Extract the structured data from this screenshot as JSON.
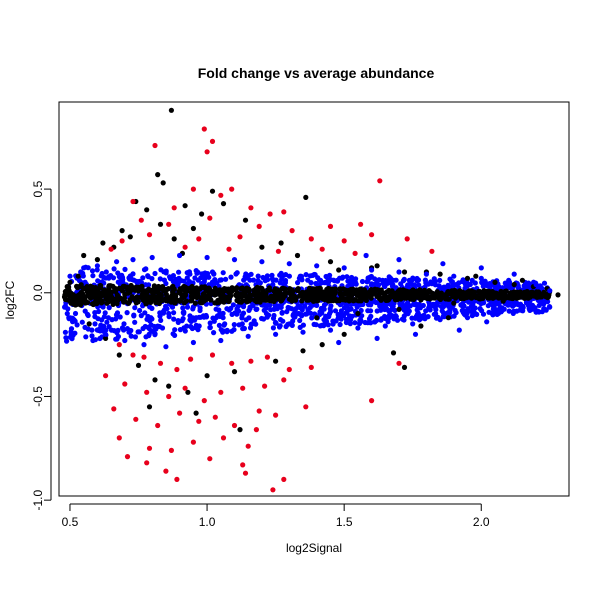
{
  "chart_data": {
    "type": "scatter",
    "title": "Fold change vs average abundance",
    "xlabel": "log2Signal",
    "ylabel": "log2FC",
    "xlim": [
      0.46,
      2.32
    ],
    "ylim": [
      -0.98,
      0.92
    ],
    "x_ticks": [
      0.5,
      1.0,
      1.5,
      2.0
    ],
    "x_tick_labels": [
      "0.5",
      "1.0",
      "1.5",
      "2.0"
    ],
    "y_ticks": [
      -1.0,
      -0.5,
      0.0,
      0.5
    ],
    "y_tick_labels": [
      "-1.0",
      "-0.5",
      "0.0",
      "0.5"
    ],
    "grid": false,
    "legend": "none",
    "colors": {
      "black": "#000000",
      "blue": "#0000ff",
      "red": "#e8001c"
    },
    "series": [
      {
        "color": "#000000",
        "points": [
          [
            0.87,
            0.88
          ],
          [
            0.82,
            0.57
          ],
          [
            0.84,
            0.53
          ],
          [
            1.02,
            0.49
          ],
          [
            1.36,
            0.46
          ],
          [
            0.74,
            0.44
          ],
          [
            0.78,
            0.4
          ],
          [
            0.92,
            0.42
          ],
          [
            1.06,
            0.43
          ],
          [
            0.98,
            0.38
          ],
          [
            0.69,
            0.3
          ],
          [
            0.72,
            0.27
          ],
          [
            0.83,
            0.33
          ],
          [
            0.95,
            0.31
          ],
          [
            1.14,
            0.35
          ],
          [
            0.62,
            0.24
          ],
          [
            0.66,
            0.22
          ],
          [
            0.88,
            0.26
          ],
          [
            1.2,
            0.22
          ],
          [
            1.27,
            0.24
          ],
          [
            0.55,
            0.18
          ],
          [
            0.6,
            0.16
          ],
          [
            0.91,
            0.19
          ],
          [
            1.33,
            0.18
          ],
          [
            1.45,
            0.15
          ],
          [
            1.6,
            0.12
          ],
          [
            1.72,
            0.1
          ],
          [
            1.85,
            0.09
          ],
          [
            1.95,
            0.07
          ],
          [
            2.05,
            0.05
          ],
          [
            2.12,
            0.04
          ],
          [
            2.19,
            0.03
          ],
          [
            2.24,
            0.02
          ],
          [
            2.28,
            -0.01
          ],
          [
            2.22,
            -0.02
          ],
          [
            2.15,
            0.06
          ],
          [
            2.08,
            -0.04
          ],
          [
            1.98,
            0.08
          ],
          [
            1.9,
            -0.05
          ],
          [
            1.8,
            0.1
          ],
          [
            1.7,
            -0.08
          ],
          [
            1.62,
            0.13
          ],
          [
            1.55,
            -0.1
          ],
          [
            1.48,
            0.11
          ],
          [
            1.4,
            -0.12
          ],
          [
            0.49,
            0.03
          ],
          [
            0.48,
            -0.02
          ],
          [
            0.5,
            0.05
          ],
          [
            0.51,
            -0.05
          ],
          [
            0.53,
            0.08
          ],
          [
            0.57,
            -0.15
          ],
          [
            0.63,
            -0.22
          ],
          [
            0.68,
            -0.3
          ],
          [
            0.75,
            -0.35
          ],
          [
            0.81,
            -0.42
          ],
          [
            0.86,
            -0.45
          ],
          [
            0.93,
            -0.48
          ],
          [
            1.0,
            -0.4
          ],
          [
            1.1,
            -0.38
          ],
          [
            1.25,
            -0.33
          ],
          [
            1.35,
            -0.28
          ],
          [
            1.5,
            -0.2
          ],
          [
            1.68,
            -0.29
          ],
          [
            1.72,
            -0.36
          ],
          [
            1.12,
            -0.66
          ],
          [
            0.96,
            -0.58
          ],
          [
            0.79,
            -0.55
          ],
          [
            1.42,
            -0.25
          ],
          [
            1.78,
            -0.16
          ],
          [
            1.88,
            -0.12
          ]
        ]
      },
      {
        "color": "#0000ff",
        "points": [
          [
            0.5,
            0.08
          ],
          [
            0.52,
            -0.1
          ],
          [
            0.55,
            0.12
          ],
          [
            0.58,
            -0.18
          ],
          [
            0.6,
            0.13
          ],
          [
            0.63,
            -0.2
          ],
          [
            0.67,
            0.15
          ],
          [
            0.7,
            -0.23
          ],
          [
            0.73,
            0.16
          ],
          [
            0.77,
            -0.25
          ],
          [
            0.8,
            0.17
          ],
          [
            0.85,
            -0.26
          ],
          [
            0.9,
            0.18
          ],
          [
            0.95,
            -0.24
          ],
          [
            1.0,
            0.17
          ],
          [
            1.05,
            -0.23
          ],
          [
            1.1,
            0.16
          ],
          [
            1.15,
            -0.21
          ],
          [
            1.2,
            0.15
          ],
          [
            1.25,
            -0.2
          ],
          [
            1.3,
            0.14
          ],
          [
            1.35,
            -0.19
          ],
          [
            1.4,
            0.13
          ],
          [
            1.45,
            -0.18
          ],
          [
            1.5,
            0.12
          ],
          [
            1.55,
            -0.17
          ],
          [
            1.6,
            0.11
          ],
          [
            1.65,
            -0.16
          ],
          [
            1.7,
            0.1
          ],
          [
            1.75,
            -0.15
          ],
          [
            1.8,
            0.09
          ],
          [
            1.85,
            -0.13
          ],
          [
            1.9,
            0.08
          ],
          [
            1.95,
            -0.12
          ],
          [
            2.0,
            0.07
          ],
          [
            2.05,
            -0.1
          ],
          [
            2.1,
            0.06
          ],
          [
            2.15,
            -0.07
          ],
          [
            2.2,
            0.04
          ],
          [
            2.25,
            0.01
          ],
          [
            1.48,
            -0.24
          ],
          [
            1.62,
            -0.22
          ],
          [
            1.76,
            -0.2
          ],
          [
            1.92,
            -0.18
          ],
          [
            2.02,
            -0.14
          ],
          [
            1.58,
            0.18
          ],
          [
            1.7,
            0.16
          ],
          [
            1.86,
            0.14
          ],
          [
            2.0,
            0.12
          ],
          [
            2.12,
            0.09
          ],
          [
            0.64,
            -0.12
          ],
          [
            0.72,
            0.08
          ],
          [
            0.86,
            -0.1
          ],
          [
            1.02,
            0.1
          ],
          [
            1.18,
            -0.08
          ],
          [
            1.34,
            0.08
          ],
          [
            1.52,
            -0.08
          ],
          [
            1.68,
            0.06
          ],
          [
            1.84,
            -0.06
          ],
          [
            1.96,
            0.04
          ]
        ]
      },
      {
        "color": "#e8001c",
        "points": [
          [
            0.99,
            0.79
          ],
          [
            0.81,
            0.71
          ],
          [
            1.02,
            0.73
          ],
          [
            1.0,
            0.68
          ],
          [
            1.63,
            0.54
          ],
          [
            0.95,
            0.5
          ],
          [
            1.05,
            0.47
          ],
          [
            1.09,
            0.5
          ],
          [
            0.73,
            0.44
          ],
          [
            0.88,
            0.41
          ],
          [
            1.16,
            0.41
          ],
          [
            1.23,
            0.38
          ],
          [
            1.28,
            0.39
          ],
          [
            0.76,
            0.35
          ],
          [
            0.86,
            0.33
          ],
          [
            1.01,
            0.36
          ],
          [
            1.19,
            0.32
          ],
          [
            1.31,
            0.3
          ],
          [
            1.45,
            0.32
          ],
          [
            1.56,
            0.33
          ],
          [
            0.69,
            0.25
          ],
          [
            0.79,
            0.28
          ],
          [
            0.97,
            0.26
          ],
          [
            1.12,
            0.27
          ],
          [
            1.38,
            0.26
          ],
          [
            1.5,
            0.25
          ],
          [
            1.6,
            0.28
          ],
          [
            1.73,
            0.26
          ],
          [
            1.82,
            0.2
          ],
          [
            0.65,
            0.21
          ],
          [
            0.92,
            0.22
          ],
          [
            1.08,
            0.21
          ],
          [
            1.26,
            0.2
          ],
          [
            1.42,
            0.21
          ],
          [
            1.54,
            0.19
          ],
          [
            0.68,
            -0.25
          ],
          [
            0.73,
            -0.3
          ],
          [
            0.77,
            -0.31
          ],
          [
            0.83,
            -0.34
          ],
          [
            0.89,
            -0.37
          ],
          [
            0.94,
            -0.32
          ],
          [
            1.02,
            -0.3
          ],
          [
            1.09,
            -0.34
          ],
          [
            1.16,
            -0.33
          ],
          [
            1.22,
            -0.31
          ],
          [
            1.3,
            -0.37
          ],
          [
            1.38,
            -0.36
          ],
          [
            1.7,
            -0.34
          ],
          [
            0.7,
            -0.44
          ],
          [
            0.78,
            -0.48
          ],
          [
            0.86,
            -0.5
          ],
          [
            0.92,
            -0.46
          ],
          [
            0.99,
            -0.52
          ],
          [
            1.05,
            -0.48
          ],
          [
            1.13,
            -0.46
          ],
          [
            1.21,
            -0.45
          ],
          [
            1.28,
            -0.42
          ],
          [
            1.36,
            -0.55
          ],
          [
            1.6,
            -0.52
          ],
          [
            0.66,
            -0.56
          ],
          [
            0.74,
            -0.61
          ],
          [
            0.82,
            -0.64
          ],
          [
            0.9,
            -0.58
          ],
          [
            0.97,
            -0.62
          ],
          [
            1.03,
            -0.6
          ],
          [
            1.1,
            -0.64
          ],
          [
            1.19,
            -0.57
          ],
          [
            1.25,
            -0.59
          ],
          [
            0.68,
            -0.7
          ],
          [
            0.79,
            -0.75
          ],
          [
            0.87,
            -0.76
          ],
          [
            0.95,
            -0.72
          ],
          [
            1.06,
            -0.7
          ],
          [
            1.15,
            -0.74
          ],
          [
            0.71,
            -0.79
          ],
          [
            0.85,
            -0.86
          ],
          [
            0.89,
            -0.9
          ],
          [
            1.13,
            -0.83
          ],
          [
            1.14,
            -0.87
          ],
          [
            1.24,
            -0.95
          ],
          [
            1.28,
            -0.9
          ],
          [
            0.78,
            -0.82
          ],
          [
            1.01,
            -0.8
          ],
          [
            1.18,
            -0.66
          ],
          [
            0.63,
            -0.4
          ]
        ]
      }
    ],
    "dense_band": {
      "color": "#000000",
      "x_range": [
        0.48,
        2.25
      ],
      "y_center": -0.01,
      "y_half_width_start": 0.05,
      "y_half_width_end": 0.015
    },
    "blue_band": {
      "color": "#0000ff",
      "x_range": [
        0.48,
        2.25
      ],
      "y_upper_start": 0.13,
      "y_lower_start": -0.24,
      "y_upper_end": 0.05,
      "y_lower_end": -0.09
    }
  }
}
